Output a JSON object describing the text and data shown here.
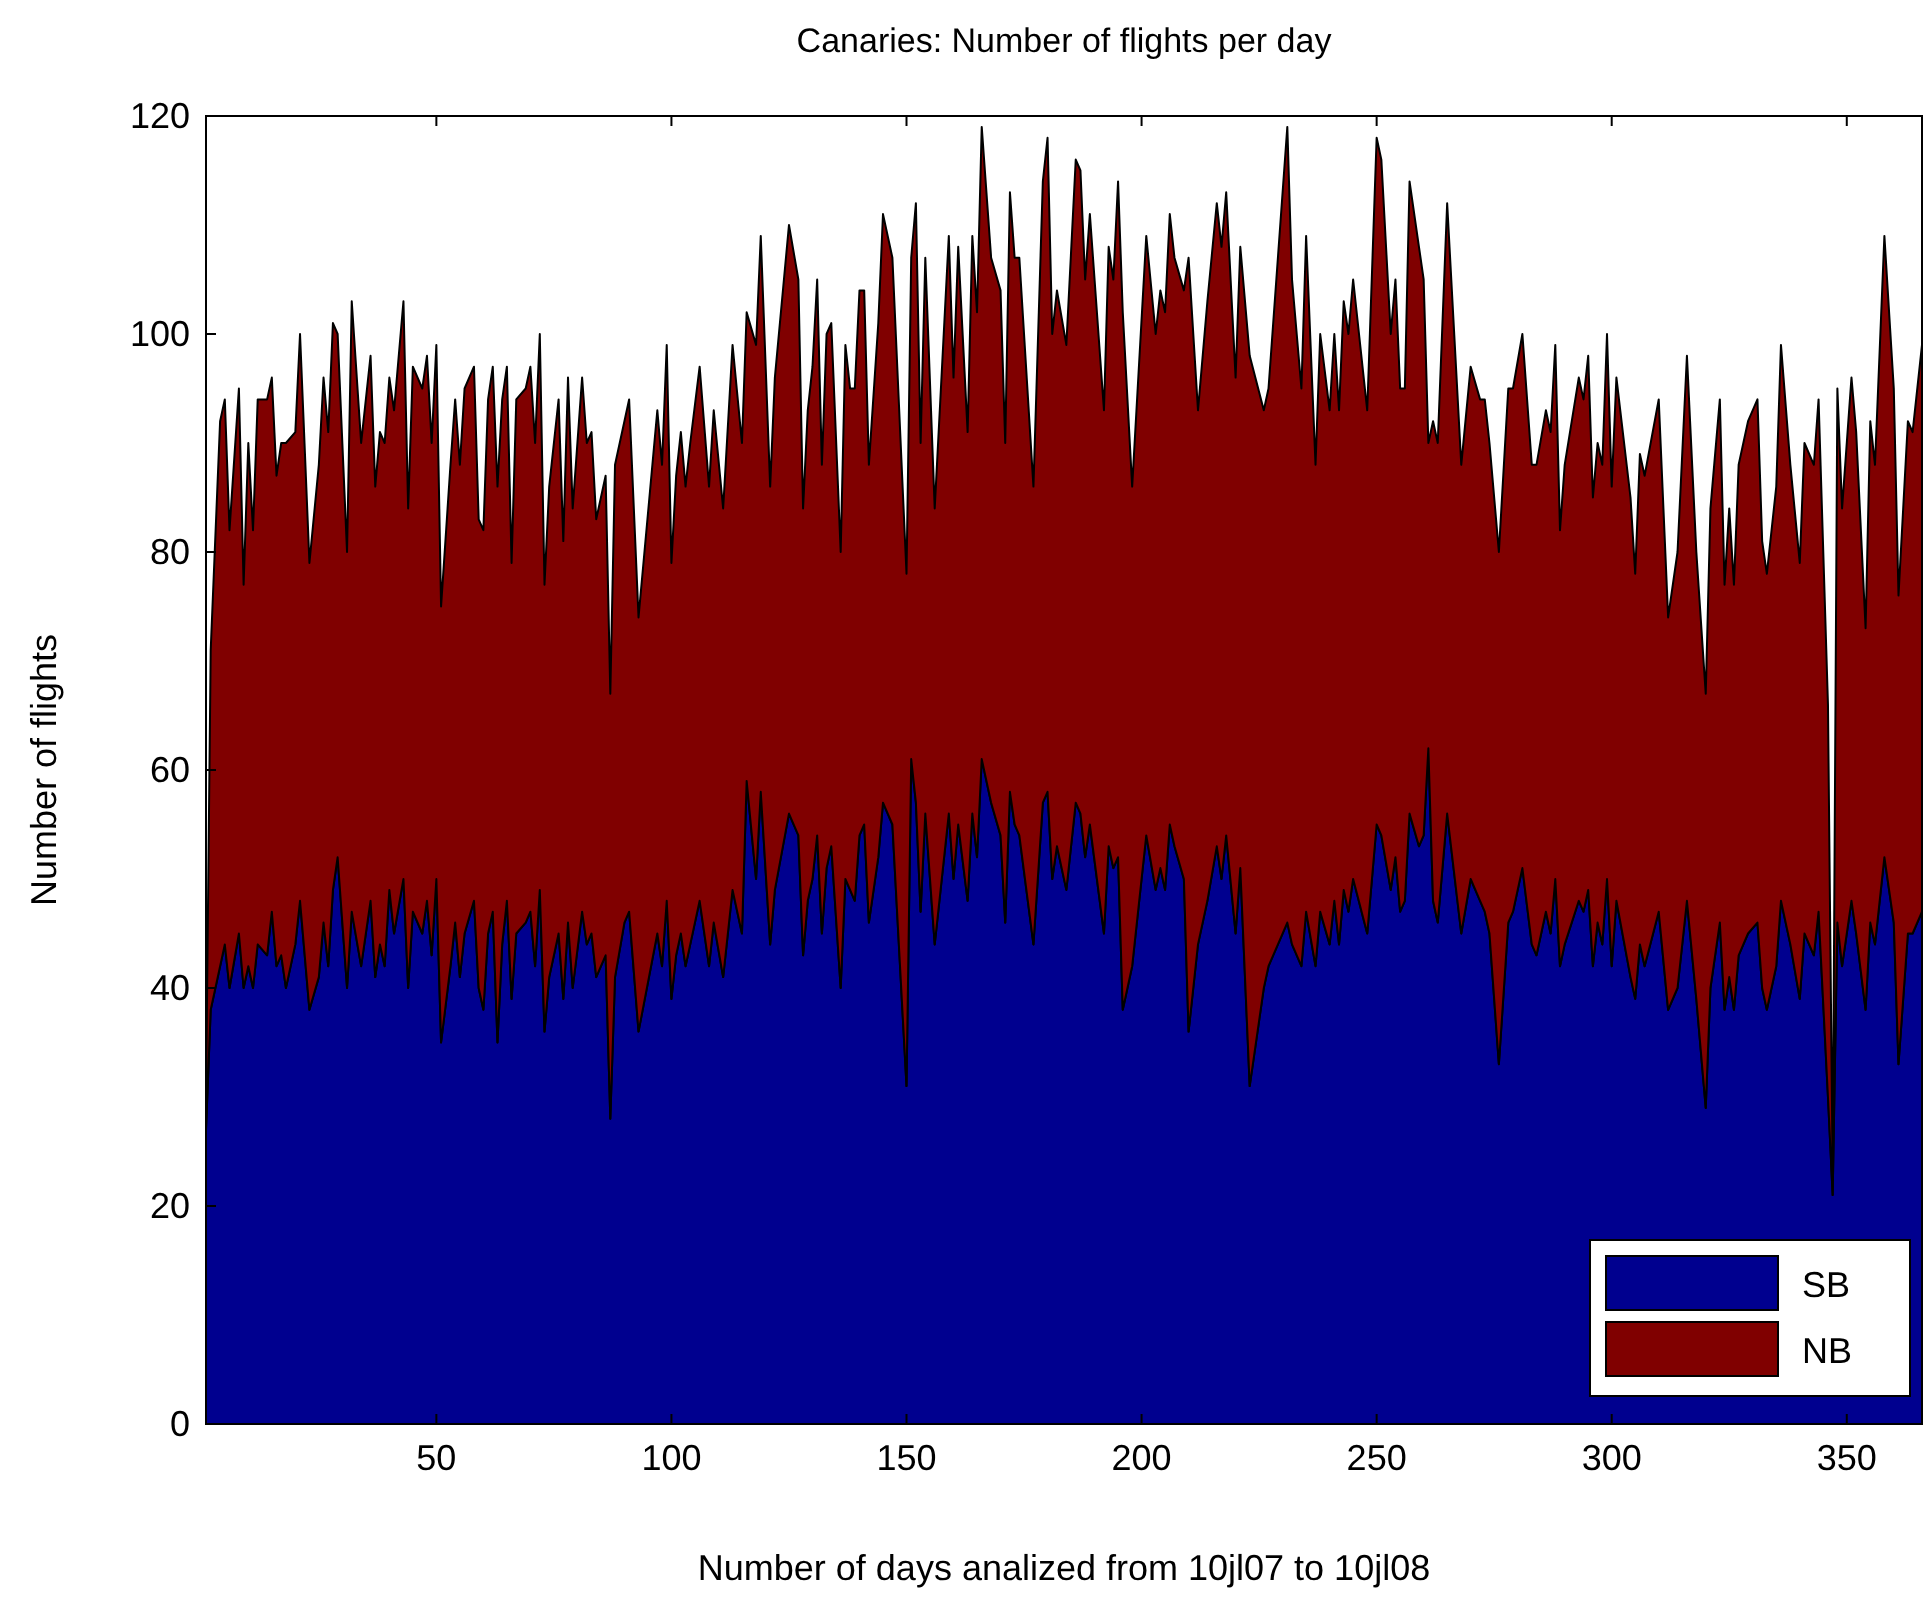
{
  "chart_data": {
    "type": "area",
    "title": "Canaries: Number of flights per day",
    "xlabel": "Number of days analized from 10jl07 to 10jl08",
    "ylabel": "Number of flights",
    "stacked": true,
    "legend": "bottom right",
    "grid": false,
    "xlim": [
      1,
      366
    ],
    "xticks": [
      50,
      100,
      150,
      200,
      250,
      300,
      350
    ],
    "ylim": [
      0,
      120
    ],
    "yticks": [
      0,
      20,
      40,
      60,
      80,
      100,
      120
    ],
    "x": [
      1,
      2,
      4,
      5,
      6,
      8,
      9,
      10,
      11,
      12,
      14,
      15,
      16,
      17,
      18,
      20,
      21,
      23,
      25,
      26,
      27,
      28,
      29,
      31,
      32,
      34,
      36,
      37,
      38,
      39,
      40,
      41,
      43,
      44,
      45,
      47,
      48,
      49,
      50,
      51,
      53,
      54,
      55,
      56,
      58,
      59,
      60,
      61,
      62,
      63,
      64,
      65,
      66,
      67,
      69,
      70,
      71,
      72,
      73,
      74,
      76,
      77,
      78,
      79,
      81,
      82,
      83,
      84,
      86,
      87,
      88,
      90,
      91,
      93,
      97,
      98,
      99,
      100,
      101,
      102,
      103,
      104,
      106,
      108,
      109,
      111,
      113,
      115,
      116,
      118,
      119,
      121,
      122,
      125,
      127,
      128,
      129,
      130,
      131,
      132,
      133,
      134,
      136,
      137,
      138,
      139,
      140,
      141,
      142,
      144,
      145,
      147,
      150,
      151,
      152,
      153,
      154,
      156,
      159,
      160,
      161,
      163,
      164,
      165,
      166,
      168,
      170,
      171,
      172,
      173,
      174,
      177,
      179,
      180,
      181,
      182,
      184,
      186,
      187,
      188,
      189,
      192,
      193,
      194,
      195,
      196,
      198,
      201,
      203,
      204,
      205,
      206,
      207,
      209,
      210,
      212,
      214,
      216,
      217,
      218,
      220,
      221,
      223,
      226,
      227,
      231,
      232,
      234,
      235,
      237,
      238,
      240,
      241,
      242,
      243,
      244,
      245,
      248,
      250,
      251,
      253,
      254,
      255,
      256,
      257,
      259,
      260,
      261,
      262,
      263,
      265,
      268,
      270,
      272,
      273,
      274,
      276,
      278,
      279,
      281,
      283,
      284,
      286,
      287,
      288,
      289,
      290,
      293,
      294,
      295,
      296,
      297,
      298,
      299,
      300,
      301,
      304,
      305,
      306,
      307,
      310,
      312,
      314,
      316,
      318,
      320,
      321,
      323,
      324,
      325,
      326,
      327,
      329,
      331,
      332,
      333,
      335,
      336,
      338,
      340,
      341,
      343,
      344,
      346,
      347,
      348,
      349,
      351,
      352,
      354,
      355,
      356,
      358,
      360,
      361,
      363,
      364,
      366
    ],
    "series": [
      {
        "name": "SB",
        "color": "#00008f",
        "values": [
          27,
          38,
          42,
          44,
          40,
          45,
          40,
          42,
          40,
          44,
          43,
          47,
          42,
          43,
          40,
          44,
          48,
          38,
          41,
          46,
          42,
          49,
          52,
          40,
          47,
          42,
          48,
          41,
          44,
          42,
          49,
          45,
          50,
          40,
          47,
          45,
          48,
          43,
          50,
          35,
          42,
          46,
          41,
          45,
          48,
          40,
          38,
          45,
          47,
          35,
          44,
          48,
          39,
          45,
          46,
          47,
          42,
          49,
          36,
          41,
          45,
          39,
          46,
          40,
          47,
          44,
          45,
          41,
          43,
          28,
          41,
          46,
          47,
          36,
          45,
          42,
          48,
          39,
          43,
          45,
          42,
          44,
          48,
          42,
          46,
          41,
          49,
          45,
          59,
          50,
          58,
          44,
          49,
          56,
          54,
          43,
          48,
          50,
          54,
          45,
          51,
          53,
          40,
          50,
          49,
          48,
          54,
          55,
          46,
          52,
          57,
          55,
          31,
          61,
          57,
          47,
          56,
          44,
          56,
          50,
          55,
          48,
          56,
          52,
          61,
          57,
          54,
          46,
          58,
          55,
          54,
          44,
          57,
          58,
          50,
          53,
          49,
          57,
          56,
          52,
          55,
          45,
          53,
          51,
          52,
          38,
          42,
          54,
          49,
          51,
          49,
          55,
          53,
          50,
          36,
          44,
          48,
          53,
          50,
          54,
          45,
          51,
          31,
          40,
          42,
          46,
          44,
          42,
          47,
          42,
          47,
          44,
          48,
          44,
          49,
          47,
          50,
          45,
          55,
          54,
          49,
          52,
          47,
          48,
          56,
          53,
          54,
          62,
          48,
          46,
          56,
          45,
          50,
          48,
          47,
          45,
          33,
          46,
          47,
          51,
          44,
          43,
          47,
          45,
          50,
          42,
          44,
          48,
          47,
          49,
          42,
          46,
          44,
          50,
          42,
          48,
          41,
          39,
          44,
          42,
          47,
          38,
          40,
          48,
          39,
          29,
          40,
          46,
          38,
          41,
          38,
          43,
          45,
          46,
          40,
          38,
          42,
          48,
          44,
          39,
          45,
          43,
          47,
          30,
          21,
          46,
          42,
          48,
          45,
          38,
          46,
          44,
          52,
          46,
          33,
          45,
          45,
          47
        ]
      },
      {
        "name": "NB",
        "color": "#800000",
        "values": [
          3,
          33,
          50,
          50,
          42,
          50,
          37,
          48,
          42,
          50,
          51,
          49,
          45,
          47,
          50,
          47,
          52,
          41,
          47,
          50,
          49,
          52,
          48,
          40,
          56,
          48,
          50,
          45,
          47,
          48,
          47,
          48,
          53,
          44,
          50,
          50,
          50,
          47,
          49,
          40,
          46,
          48,
          47,
          50,
          49,
          43,
          44,
          49,
          50,
          51,
          50,
          49,
          40,
          49,
          49,
          50,
          48,
          51,
          41,
          45,
          49,
          42,
          50,
          44,
          49,
          46,
          46,
          42,
          44,
          39,
          47,
          46,
          47,
          38,
          48,
          46,
          51,
          40,
          44,
          46,
          44,
          46,
          49,
          44,
          47,
          43,
          50,
          45,
          43,
          49,
          51,
          42,
          47,
          54,
          51,
          41,
          45,
          47,
          51,
          43,
          49,
          48,
          40,
          49,
          46,
          47,
          50,
          49,
          42,
          49,
          54,
          52,
          47,
          46,
          55,
          43,
          51,
          40,
          53,
          46,
          53,
          43,
          53,
          50,
          58,
          50,
          50,
          44,
          55,
          52,
          53,
          42,
          57,
          60,
          50,
          51,
          50,
          59,
          59,
          53,
          56,
          48,
          55,
          54,
          62,
          64,
          44,
          55,
          51,
          53,
          53,
          56,
          54,
          54,
          71,
          49,
          55,
          59,
          58,
          59,
          51,
          57,
          67,
          53,
          53,
          73,
          61,
          53,
          62,
          46,
          53,
          49,
          52,
          49,
          54,
          53,
          55,
          48,
          63,
          62,
          51,
          53,
          48,
          47,
          58,
          55,
          51,
          28,
          44,
          44,
          56,
          43,
          47,
          46,
          47,
          45,
          47,
          49,
          48,
          49,
          44,
          45,
          46,
          46,
          49,
          40,
          44,
          48,
          47,
          49,
          43,
          44,
          44,
          50,
          44,
          48,
          44,
          39,
          45,
          45,
          47,
          36,
          40,
          50,
          41,
          38,
          44,
          48,
          39,
          43,
          39,
          45,
          47,
          48,
          41,
          40,
          44,
          51,
          44,
          40,
          45,
          45,
          47,
          36,
          2,
          49,
          42,
          48,
          46,
          35,
          46,
          44,
          57,
          49,
          43,
          47,
          46,
          52
        ]
      }
    ]
  }
}
